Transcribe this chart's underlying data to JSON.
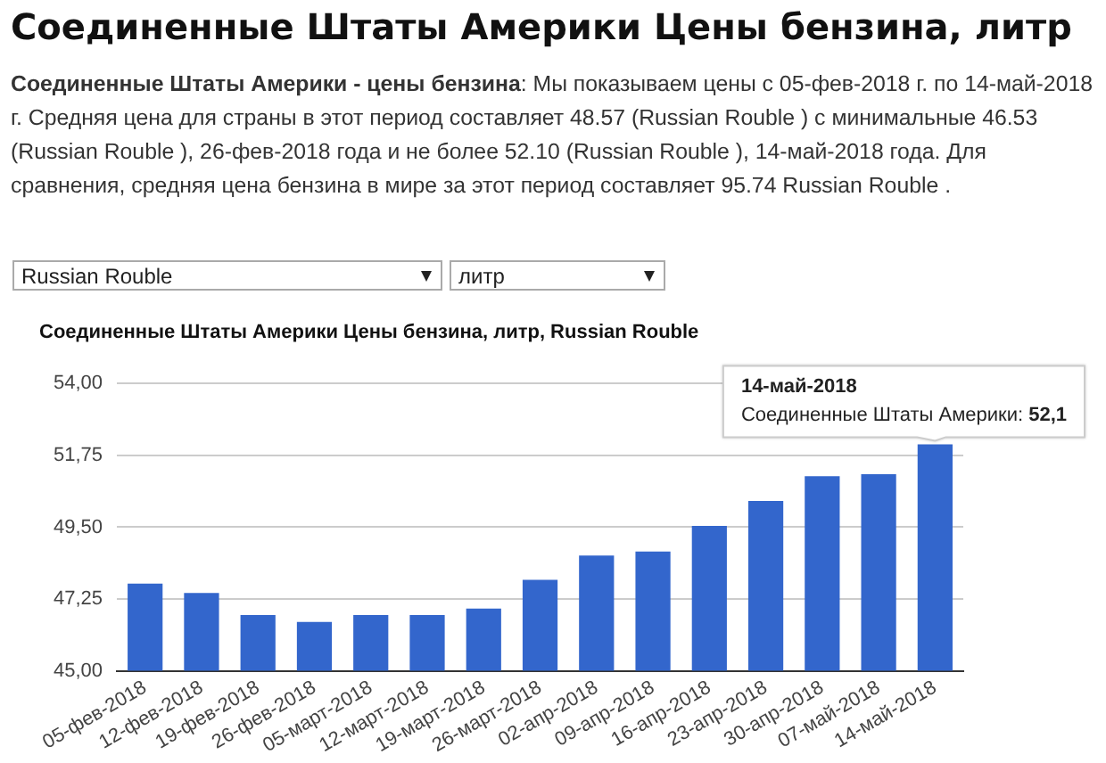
{
  "chart_data": {
    "type": "bar",
    "title": "Соединенные Штаты Америки Цены бензина, литр",
    "subtitle": "Соединенные Штаты Америки - цены бензина: Мы показываем цены с 05-фев-2018 г. по 14-май-2018 г. Средняя цена для страны в этот период составляет 48.57 (Russian Rouble ) с минимальные 46.53 (Russian Rouble ), 26-фев-2018 года и не более 52.10 (Russian Rouble ), 14-май-2018 года. Для сравнения, средняя цена бензина в мире за этот период составляет 95.74 Russian Rouble .",
    "annotations": [
      "Соединенные Штаты Америки Цены бензина, литр, Russian Rouble",
      "Russian Rouble",
      "литр",
      {
        "text": "14-май-2018\nСоединенные Штаты Америки: 52,1",
        "x": "14-май-2018",
        "y": 52.1
      }
    ],
    "categories": [
      "05-фев-2018",
      "12-фев-2018",
      "19-фев-2018",
      "26-фев-2018",
      "05-март-2018",
      "12-март-2018",
      "19-март-2018",
      "26-март-2018",
      "02-апр-2018",
      "09-апр-2018",
      "16-апр-2018",
      "23-апр-2018",
      "30-апр-2018",
      "07-май-2018",
      "14-май-2018"
    ],
    "values": [
      47.73,
      47.44,
      46.75,
      46.53,
      46.75,
      46.75,
      46.95,
      47.85,
      48.61,
      48.74,
      49.54,
      50.32,
      51.1,
      51.16,
      52.1
    ],
    "color": "#3366cc",
    "ylim": [
      45,
      54
    ],
    "yticks": [
      {
        "value": 45,
        "label": "45,00"
      },
      {
        "value": 47.25,
        "label": "47,25"
      },
      {
        "value": 49.5,
        "label": "49,50"
      },
      {
        "value": 51.75,
        "label": "51,75"
      },
      {
        "value": 54,
        "label": "54,00"
      }
    ],
    "grid": "y",
    "legend": false
  }
}
